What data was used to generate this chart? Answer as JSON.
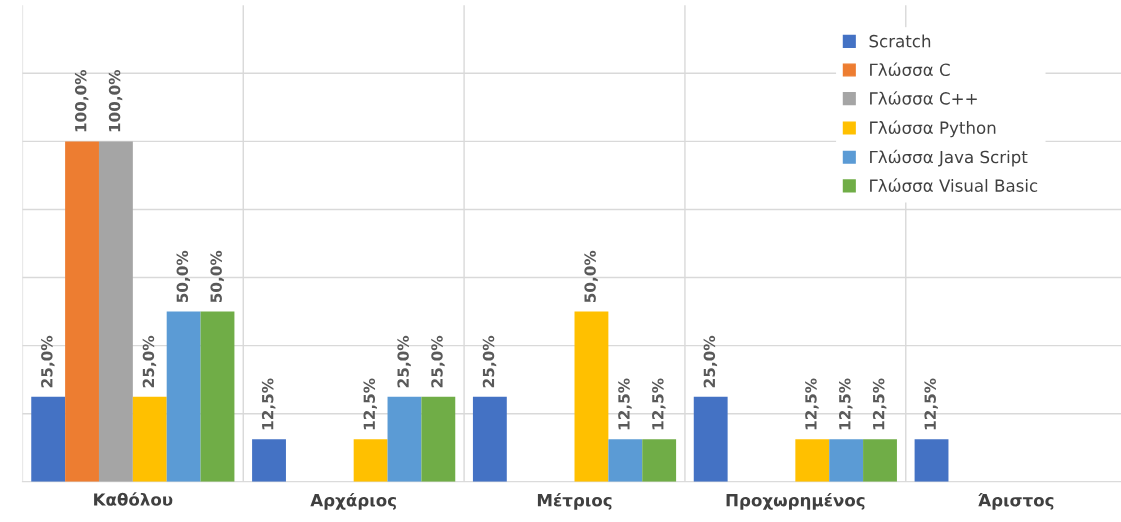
{
  "chart_data": {
    "type": "bar",
    "categories": [
      "Καθόλου",
      "Αρχάριος",
      "Μέτριος",
      "Προχωρημένος",
      "Άριστος"
    ],
    "series": [
      {
        "name": "Scratch",
        "color": "#4472c4",
        "values": [
          25,
          12.5,
          25,
          25,
          12.5
        ],
        "value_labels": [
          "25,0%",
          "12,5%",
          "25,0%",
          "25,0%",
          "12,5%"
        ]
      },
      {
        "name": "Γλώσσα C",
        "color": "#ed7d31",
        "values": [
          100,
          null,
          null,
          null,
          null
        ],
        "value_labels": [
          "100,0%",
          null,
          null,
          null,
          null
        ]
      },
      {
        "name": "Γλώσσα C++",
        "color": "#a5a5a5",
        "values": [
          100,
          null,
          null,
          null,
          null
        ],
        "value_labels": [
          "100,0%",
          null,
          null,
          null,
          null
        ]
      },
      {
        "name": "Γλώσσα Python",
        "color": "#ffc000",
        "values": [
          25,
          12.5,
          50,
          12.5,
          null
        ],
        "value_labels": [
          "25,0%",
          "12,5%",
          "50,0%",
          "12,5%",
          null
        ]
      },
      {
        "name": "Γλώσσα Java Script",
        "color": "#5b9bd5",
        "values": [
          50,
          25,
          12.5,
          12.5,
          null
        ],
        "value_labels": [
          "50,0%",
          "25,0%",
          "12,5%",
          "12,5%",
          null
        ]
      },
      {
        "name": "Γλώσσα Visual Basic",
        "color": "#70ad47",
        "values": [
          50,
          25,
          12.5,
          12.5,
          null
        ],
        "value_labels": [
          "50,0%",
          "25,0%",
          "12,5%",
          "12,5%",
          null
        ]
      }
    ],
    "ylim": [
      0,
      140
    ],
    "yticks": [
      {
        "value": 0,
        "label": null
      },
      {
        "value": 20,
        "label": null
      },
      {
        "value": 40,
        "label": null
      },
      {
        "value": 60,
        "label": null
      },
      {
        "value": 80,
        "label": null
      },
      {
        "value": 100,
        "label": null
      },
      {
        "value": 120,
        "label": null
      }
    ],
    "tick_labels": "x",
    "grid": true,
    "legend": "top right"
  }
}
